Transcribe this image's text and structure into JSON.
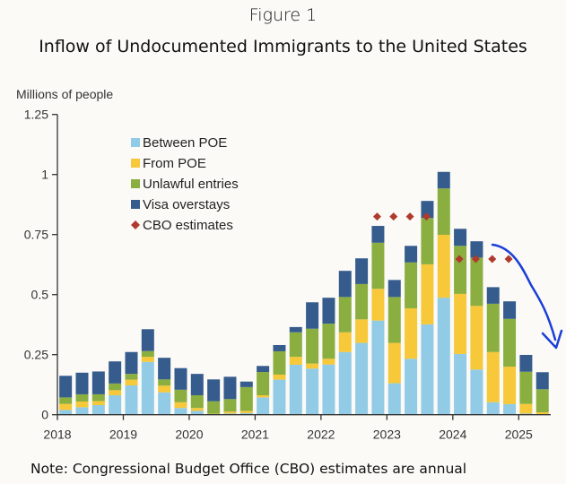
{
  "figure_label": "Figure 1",
  "note": "Note: Congressional Budget Office (CBO) estimates are annual",
  "chart_data": {
    "type": "bar",
    "stacked": true,
    "title": "Inflow of Undocumented Immigrants to the United States",
    "ylabel": "Millions of people",
    "xlabel": "",
    "ylim": [
      0,
      1.25
    ],
    "yticks": [
      "0",
      "0.25",
      "0.5",
      "0.75",
      "1",
      "1.25"
    ],
    "ytick_values": [
      0,
      0.25,
      0.5,
      0.75,
      1,
      1.25
    ],
    "xticks": [
      "2018",
      "2019",
      "2020",
      "2021",
      "2022",
      "2023",
      "2024",
      "2025"
    ],
    "frequency": "quarterly",
    "categories": [
      "2018Q1",
      "2018Q2",
      "2018Q3",
      "2018Q4",
      "2019Q1",
      "2019Q2",
      "2019Q3",
      "2019Q4",
      "2020Q1",
      "2020Q2",
      "2020Q3",
      "2020Q4",
      "2021Q1",
      "2021Q2",
      "2021Q3",
      "2021Q4",
      "2022Q1",
      "2022Q2",
      "2022Q3",
      "2022Q4",
      "2023Q1",
      "2023Q2",
      "2023Q3",
      "2023Q4",
      "2024Q1",
      "2024Q2",
      "2024Q3",
      "2024Q4",
      "2025Q1",
      "2025Q2"
    ],
    "series": [
      {
        "name": "Between POE",
        "color": "#92cbe5",
        "values": [
          0.02,
          0.031,
          0.04,
          0.081,
          0.122,
          0.22,
          0.093,
          0.028,
          0.016,
          0.002,
          0.005,
          0.007,
          0.072,
          0.146,
          0.208,
          0.192,
          0.209,
          0.261,
          0.299,
          0.392,
          0.131,
          0.233,
          0.376,
          0.487,
          0.253,
          0.188,
          0.052,
          0.044,
          0.005,
          0.0
        ]
      },
      {
        "name": "From POE",
        "color": "#f6c83a",
        "values": [
          0.025,
          0.024,
          0.017,
          0.021,
          0.024,
          0.021,
          0.028,
          0.024,
          0.012,
          0.002,
          0.008,
          0.009,
          0.009,
          0.021,
          0.033,
          0.021,
          0.024,
          0.082,
          0.098,
          0.132,
          0.168,
          0.21,
          0.25,
          0.262,
          0.25,
          0.265,
          0.209,
          0.156,
          0.04,
          0.01
        ]
      },
      {
        "name": "Unlawful entries",
        "color": "#8aaf40",
        "values": [
          0.027,
          0.03,
          0.028,
          0.028,
          0.024,
          0.024,
          0.026,
          0.052,
          0.053,
          0.052,
          0.052,
          0.099,
          0.097,
          0.097,
          0.102,
          0.145,
          0.146,
          0.147,
          0.147,
          0.192,
          0.191,
          0.191,
          0.193,
          0.193,
          0.2,
          0.201,
          0.201,
          0.199,
          0.134,
          0.096
        ]
      },
      {
        "name": "Visa overstays",
        "color": "#355c8c",
        "values": [
          0.09,
          0.09,
          0.095,
          0.092,
          0.091,
          0.091,
          0.09,
          0.09,
          0.089,
          0.091,
          0.093,
          0.023,
          0.025,
          0.026,
          0.022,
          0.11,
          0.108,
          0.109,
          0.107,
          0.07,
          0.071,
          0.069,
          0.071,
          0.069,
          0.071,
          0.068,
          0.069,
          0.073,
          0.07,
          0.071
        ]
      }
    ],
    "cbo_estimates": {
      "name": "CBO estimates",
      "color": "#b03a2e",
      "marker": "diamond",
      "points": [
        {
          "x": "2022Q4",
          "y": 0.825
        },
        {
          "x": "2023Q1",
          "y": 0.825
        },
        {
          "x": "2023Q2",
          "y": 0.825
        },
        {
          "x": "2023Q3",
          "y": 0.825
        },
        {
          "x": "2024Q1",
          "y": 0.648
        },
        {
          "x": "2024Q2",
          "y": 0.648
        },
        {
          "x": "2024Q3",
          "y": 0.648
        },
        {
          "x": "2024Q4",
          "y": 0.648
        }
      ]
    },
    "legend": [
      "Between POE",
      "From POE",
      "Unlawful entries",
      "Visa overstays",
      "CBO estimates"
    ],
    "legend_position": "top-left",
    "grid": false,
    "annotations": [
      {
        "type": "hand-drawn-arrow",
        "color": "#1a3fd6",
        "meaning": "downward trend 2024-2025"
      }
    ]
  }
}
